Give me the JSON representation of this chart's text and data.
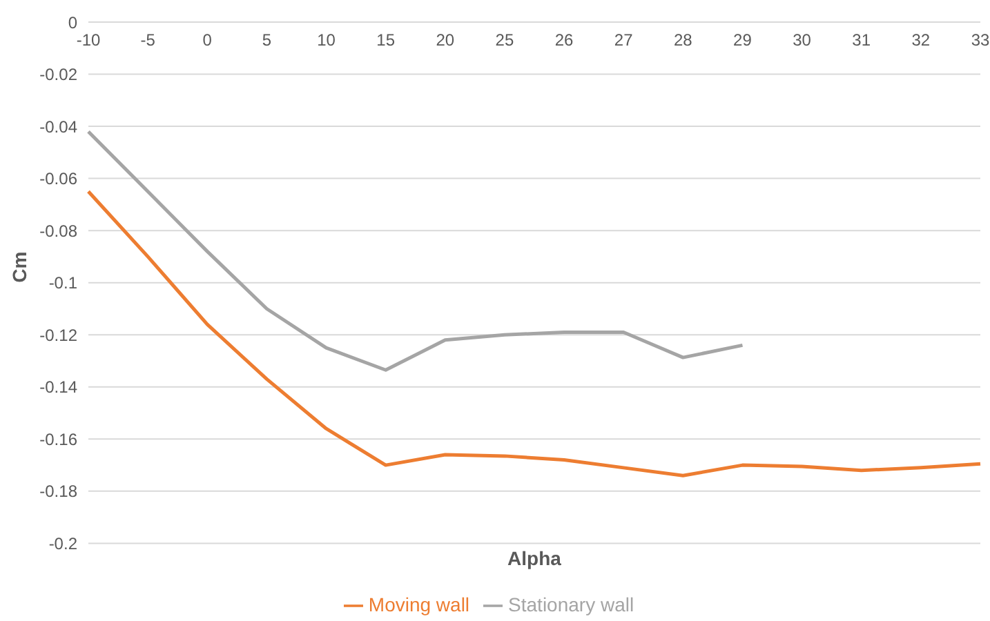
{
  "chart_data": {
    "type": "line",
    "categories": [
      "-10",
      "-5",
      "0",
      "5",
      "10",
      "15",
      "20",
      "25",
      "26",
      "27",
      "28",
      "29",
      "30",
      "31",
      "32",
      "33"
    ],
    "series": [
      {
        "name": "Moving wall",
        "color": "#ed7d31",
        "values": [
          -0.065,
          -0.09,
          -0.116,
          -0.137,
          -0.156,
          -0.17,
          -0.166,
          -0.1665,
          -0.168,
          -0.171,
          -0.174,
          -0.17,
          -0.1705,
          -0.172,
          -0.171,
          -0.1695
        ]
      },
      {
        "name": "Stationary wall",
        "color": "#a5a5a5",
        "values": [
          -0.042,
          -0.065,
          -0.088,
          -0.11,
          -0.125,
          -0.1335,
          -0.122,
          -0.12,
          -0.119,
          -0.119,
          -0.1287,
          -0.124,
          null,
          null,
          null,
          null
        ]
      }
    ],
    "xlabel": "Alpha",
    "ylabel": "Cm",
    "ylim": [
      -0.2,
      0
    ],
    "yticks": [
      0,
      -0.02,
      -0.04,
      -0.06,
      -0.08,
      -0.1,
      -0.12,
      -0.14,
      -0.16,
      -0.18,
      -0.2
    ],
    "grid": "y",
    "legend": "bottom",
    "marker": "none",
    "line_style": "solid"
  }
}
